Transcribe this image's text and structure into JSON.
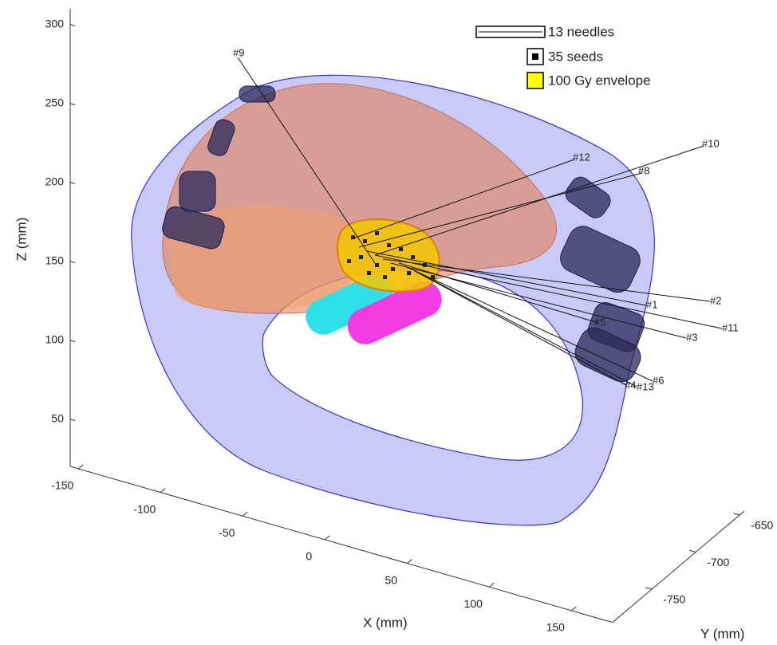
{
  "chart_data": {
    "type": "3d",
    "xlabel": "X (mm)",
    "ylabel": "Y (mm)",
    "zlabel": "Z (mm)",
    "xlim": [
      -155,
      175
    ],
    "ylim": [
      -795,
      -645
    ],
    "zlim": [
      20,
      310
    ],
    "xticks": [
      -150,
      -100,
      -50,
      0,
      50,
      100,
      150
    ],
    "yticks": [
      -750,
      -700,
      -650
    ],
    "zticks": [
      50,
      100,
      150,
      200,
      250,
      300
    ],
    "legend": [
      "13 needles",
      "35 seeds",
      "100 Gy envelope"
    ],
    "needle_labels": [
      "#9",
      "#12",
      "#10",
      "#8",
      "#1",
      "#2",
      "#11",
      "#3",
      "#5",
      "#6",
      "#4",
      "#13"
    ]
  }
}
